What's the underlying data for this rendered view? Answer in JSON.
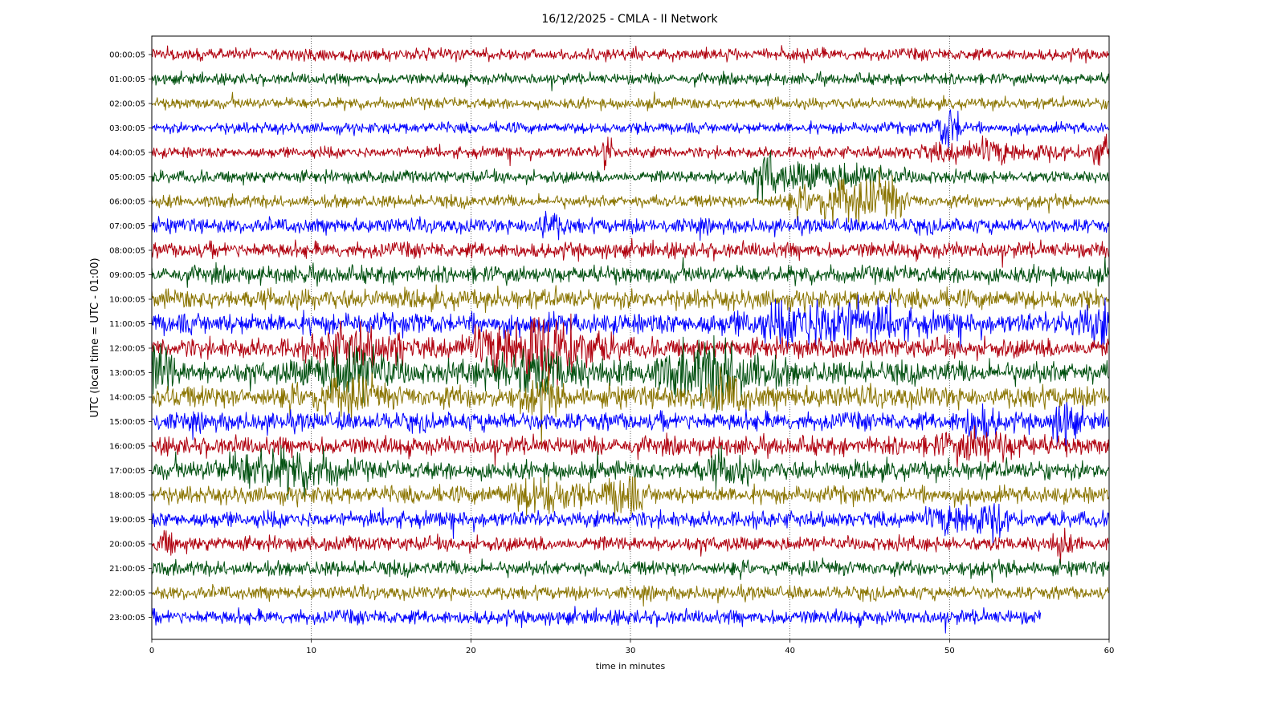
{
  "chart_data": {
    "type": "line",
    "title": "16/12/2025 - CMLA - II Network",
    "xlabel": "time in minutes",
    "ylabel": "UTC (local time = UTC - 01:00)",
    "xlim": [
      0,
      60
    ],
    "x_ticks": [
      "0",
      "10",
      "20",
      "30",
      "40",
      "50",
      "60"
    ],
    "vertical_grid": "dotted at each x tick",
    "trace_colors": [
      "#b0000e",
      "#00500f",
      "#8a7400",
      "#0000ff"
    ],
    "rows": [
      {
        "label": "00:00:05",
        "color": "#b0000e",
        "amplitude": 1.0,
        "events": []
      },
      {
        "label": "01:00:05",
        "color": "#00500f",
        "amplitude": 0.9,
        "events": []
      },
      {
        "label": "02:00:05",
        "color": "#8a7400",
        "amplitude": 0.9,
        "events": []
      },
      {
        "label": "03:00:05",
        "color": "#0000ff",
        "amplitude": 0.9,
        "events": [
          {
            "t": 50.0,
            "amp": 3.6,
            "width": 0.5
          }
        ]
      },
      {
        "label": "04:00:05",
        "color": "#b0000e",
        "amplitude": 0.9,
        "events": [
          {
            "t": 28.5,
            "amp": 3.0,
            "width": 0.25
          },
          {
            "t": 52.5,
            "amp": 1.4,
            "width": 3.0
          },
          {
            "t": 59.6,
            "amp": 2.4,
            "width": 0.5
          }
        ]
      },
      {
        "label": "05:00:05",
        "color": "#00500f",
        "amplitude": 1.0,
        "events": [
          {
            "t": 38.6,
            "amp": 3.0,
            "width": 0.4
          },
          {
            "t": 42.0,
            "amp": 1.8,
            "width": 3.0
          }
        ]
      },
      {
        "label": "06:00:05",
        "color": "#8a7400",
        "amplitude": 1.0,
        "events": [
          {
            "t": 43.2,
            "amp": 3.2,
            "width": 1.8
          },
          {
            "t": 46.2,
            "amp": 2.6,
            "width": 0.6
          }
        ]
      },
      {
        "label": "07:00:05",
        "color": "#0000ff",
        "amplitude": 1.2,
        "events": [
          {
            "t": 24.8,
            "amp": 2.0,
            "width": 0.6
          }
        ]
      },
      {
        "label": "08:00:05",
        "color": "#b0000e",
        "amplitude": 1.3,
        "events": []
      },
      {
        "label": "09:00:05",
        "color": "#00500f",
        "amplitude": 1.4,
        "events": []
      },
      {
        "label": "10:00:05",
        "color": "#8a7400",
        "amplitude": 1.6,
        "events": []
      },
      {
        "label": "11:00:05",
        "color": "#0000ff",
        "amplitude": 1.7,
        "events": [
          {
            "t": 42.5,
            "amp": 3.2,
            "width": 3.0
          },
          {
            "t": 59.5,
            "amp": 2.2,
            "width": 1.2
          }
        ]
      },
      {
        "label": "12:00:05",
        "color": "#b0000e",
        "amplitude": 1.6,
        "events": [
          {
            "t": 24.0,
            "amp": 5.5,
            "width": 2.4
          },
          {
            "t": 12.5,
            "amp": 2.8,
            "width": 1.4
          },
          {
            "t": 15.5,
            "amp": 2.2,
            "width": 0.3
          }
        ]
      },
      {
        "label": "13:00:05",
        "color": "#00500f",
        "amplitude": 1.8,
        "events": [
          {
            "t": 0.6,
            "amp": 4.0,
            "width": 0.5
          },
          {
            "t": 12.5,
            "amp": 3.6,
            "width": 1.8
          },
          {
            "t": 24.0,
            "amp": 3.0,
            "width": 2.0
          },
          {
            "t": 35.2,
            "amp": 4.2,
            "width": 2.2
          }
        ]
      },
      {
        "label": "14:00:05",
        "color": "#8a7400",
        "amplitude": 1.8,
        "events": [
          {
            "t": 12.0,
            "amp": 2.0,
            "width": 1.5
          },
          {
            "t": 24.5,
            "amp": 2.4,
            "width": 0.6
          },
          {
            "t": 36.0,
            "amp": 2.4,
            "width": 0.8
          }
        ]
      },
      {
        "label": "15:00:05",
        "color": "#0000ff",
        "amplitude": 1.5,
        "events": [
          {
            "t": 51.8,
            "amp": 2.2,
            "width": 0.8
          },
          {
            "t": 57.2,
            "amp": 3.2,
            "width": 0.5
          }
        ]
      },
      {
        "label": "16:00:05",
        "color": "#b0000e",
        "amplitude": 1.5,
        "events": [
          {
            "t": 52.0,
            "amp": 1.8,
            "width": 1.8
          }
        ]
      },
      {
        "label": "17:00:05",
        "color": "#00500f",
        "amplitude": 1.5,
        "events": [
          {
            "t": 6.5,
            "amp": 2.2,
            "width": 1.5
          },
          {
            "t": 10.0,
            "amp": 2.0,
            "width": 1.5
          },
          {
            "t": 36.0,
            "amp": 2.0,
            "width": 1.0
          }
        ]
      },
      {
        "label": "18:00:05",
        "color": "#8a7400",
        "amplitude": 1.4,
        "events": [
          {
            "t": 24.5,
            "amp": 2.4,
            "width": 1.5
          },
          {
            "t": 29.5,
            "amp": 2.8,
            "width": 0.8
          }
        ]
      },
      {
        "label": "19:00:05",
        "color": "#0000ff",
        "amplitude": 1.3,
        "events": [
          {
            "t": 51.0,
            "amp": 2.4,
            "width": 1.4
          },
          {
            "t": 53.0,
            "amp": 2.0,
            "width": 0.3
          }
        ]
      },
      {
        "label": "20:00:05",
        "color": "#b0000e",
        "amplitude": 1.2,
        "events": [
          {
            "t": 0.9,
            "amp": 1.8,
            "width": 0.3
          },
          {
            "t": 57.0,
            "amp": 1.8,
            "width": 0.3
          }
        ]
      },
      {
        "label": "21:00:05",
        "color": "#00500f",
        "amplitude": 1.2,
        "events": []
      },
      {
        "label": "22:00:05",
        "color": "#8a7400",
        "amplitude": 1.1,
        "events": []
      },
      {
        "label": "23:00:05",
        "color": "#0000ff",
        "amplitude": 1.2,
        "end_minute": 55.7,
        "events": []
      }
    ]
  }
}
